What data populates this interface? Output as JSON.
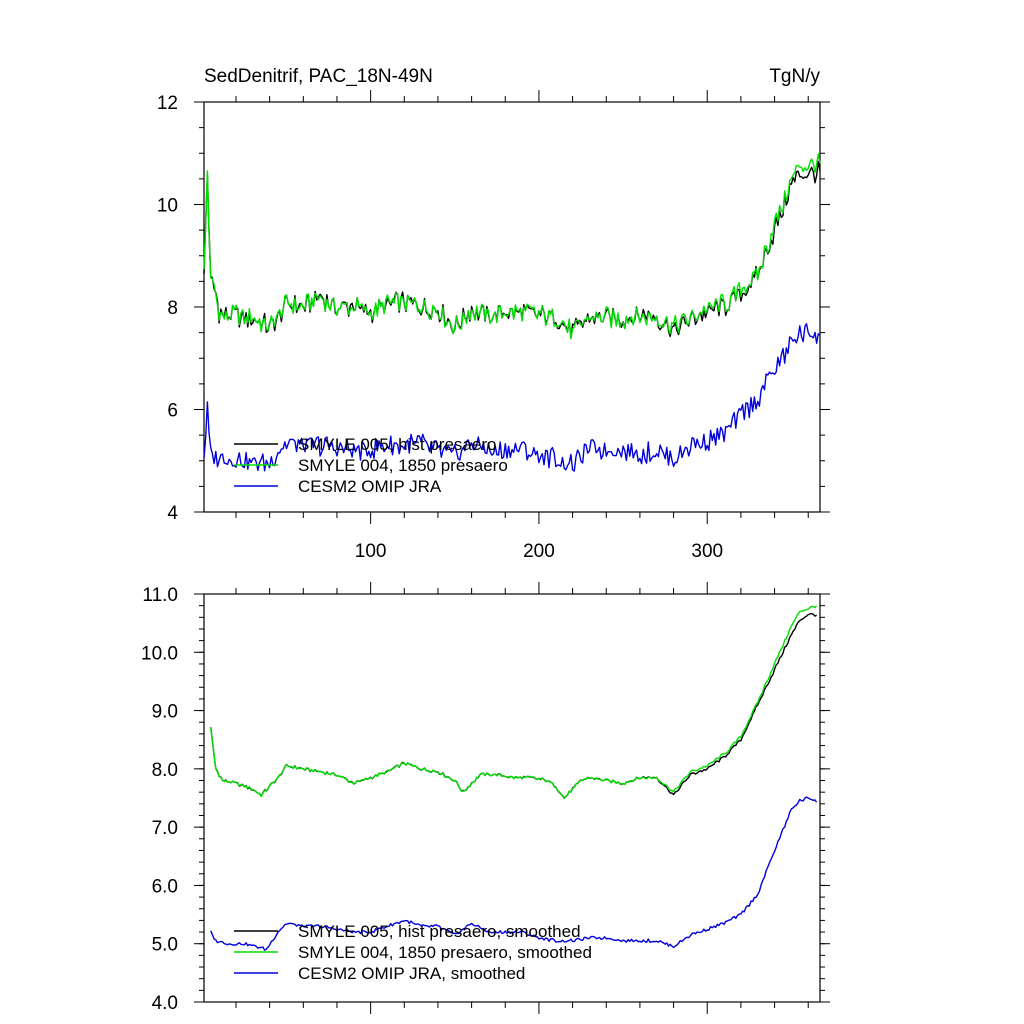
{
  "chart_data": [
    {
      "type": "line",
      "title": "SedDenitrif, PAC_18N-49N",
      "units": "TgN/y",
      "xlim": [
        1,
        367
      ],
      "ylim": [
        4,
        12
      ],
      "x_ticks": [
        100,
        200,
        300
      ],
      "y_ticks": [
        4,
        6,
        8,
        10,
        12
      ],
      "y_tick_labels": [
        "4",
        "6",
        "8",
        "10",
        "12"
      ],
      "grid": false,
      "legend_position": "bottom-left",
      "noise": 0.18,
      "series": [
        {
          "name": "SMYLE 005, hist presaero",
          "color": "#000000",
          "x": [
            1,
            3,
            5,
            7,
            10,
            15,
            20,
            25,
            30,
            40,
            50,
            60,
            70,
            80,
            90,
            100,
            110,
            120,
            130,
            140,
            150,
            160,
            170,
            180,
            190,
            200,
            210,
            220,
            230,
            240,
            250,
            260,
            270,
            280,
            290,
            300,
            310,
            320,
            330,
            340,
            345,
            350,
            355,
            360,
            365,
            367
          ],
          "values": [
            8.6,
            10.6,
            8.5,
            8.4,
            7.9,
            7.8,
            7.85,
            7.75,
            7.8,
            7.6,
            8.05,
            8.0,
            8.2,
            8.0,
            8.0,
            7.9,
            8.05,
            8.1,
            8.0,
            7.95,
            7.6,
            7.95,
            7.8,
            7.9,
            7.9,
            7.85,
            7.8,
            7.5,
            7.8,
            7.8,
            7.75,
            7.85,
            7.8,
            7.55,
            7.75,
            7.9,
            8.0,
            8.25,
            8.6,
            9.5,
            9.9,
            10.4,
            10.6,
            10.6,
            10.65,
            10.6
          ]
        },
        {
          "name": "SMYLE 004, 1850 presaero",
          "color": "#00e000",
          "x": [
            1,
            3,
            5,
            7,
            10,
            15,
            20,
            25,
            30,
            40,
            50,
            60,
            70,
            80,
            90,
            100,
            110,
            120,
            130,
            140,
            150,
            160,
            170,
            180,
            190,
            200,
            210,
            220,
            230,
            240,
            250,
            260,
            270,
            280,
            290,
            300,
            310,
            320,
            330,
            340,
            345,
            350,
            355,
            360,
            365,
            367
          ],
          "values": [
            8.6,
            10.7,
            8.5,
            8.4,
            7.9,
            7.8,
            7.85,
            7.75,
            7.8,
            7.6,
            8.05,
            8.0,
            8.2,
            8.0,
            8.0,
            7.9,
            8.05,
            8.1,
            8.0,
            7.95,
            7.6,
            7.95,
            7.8,
            7.9,
            7.9,
            7.85,
            7.8,
            7.5,
            7.8,
            7.8,
            7.75,
            7.85,
            7.8,
            7.6,
            7.8,
            7.95,
            8.05,
            8.3,
            8.65,
            9.6,
            10.0,
            10.5,
            10.75,
            10.75,
            10.8,
            10.75
          ]
        },
        {
          "name": "CESM2 OMIP JRA",
          "color": "#0000dd",
          "x": [
            1,
            3,
            5,
            10,
            20,
            30,
            40,
            50,
            60,
            70,
            80,
            90,
            100,
            110,
            120,
            130,
            140,
            150,
            160,
            170,
            180,
            190,
            200,
            210,
            220,
            230,
            240,
            250,
            260,
            270,
            280,
            290,
            300,
            310,
            320,
            330,
            340,
            345,
            350,
            355,
            360,
            365,
            367
          ],
          "values": [
            5.1,
            6.0,
            5.1,
            5.05,
            5.05,
            4.95,
            4.95,
            5.35,
            5.3,
            5.3,
            5.25,
            5.2,
            5.2,
            5.3,
            5.3,
            5.35,
            5.2,
            5.1,
            5.35,
            5.2,
            5.2,
            5.25,
            5.1,
            5.05,
            4.9,
            5.25,
            5.2,
            5.2,
            5.1,
            5.2,
            5.0,
            5.3,
            5.4,
            5.5,
            5.9,
            6.2,
            6.8,
            7.0,
            7.3,
            7.45,
            7.5,
            7.45,
            7.45
          ]
        }
      ]
    },
    {
      "type": "line",
      "xlim": [
        1,
        367
      ],
      "ylim": [
        4.0,
        11.0
      ],
      "x_ticks": [
        100,
        200,
        300
      ],
      "y_ticks": [
        4,
        5,
        6,
        7,
        8,
        9,
        10,
        11
      ],
      "y_tick_labels": [
        "4.0",
        "5.0",
        "6.0",
        "7.0",
        "8.0",
        "9.0",
        "10.0",
        "11.0"
      ],
      "grid": false,
      "legend_position": "bottom-left",
      "noise": 0.025,
      "series": [
        {
          "name": "SMYLE 005, hist presaero, smoothed",
          "color": "#000000",
          "x": [
            5,
            8,
            12,
            20,
            30,
            35,
            45,
            50,
            60,
            70,
            80,
            90,
            100,
            110,
            120,
            130,
            140,
            150,
            155,
            165,
            175,
            185,
            195,
            205,
            210,
            215,
            225,
            230,
            240,
            250,
            260,
            270,
            280,
            290,
            300,
            310,
            320,
            330,
            340,
            350,
            355,
            360,
            365
          ],
          "values": [
            8.7,
            8.0,
            7.8,
            7.75,
            7.65,
            7.55,
            7.85,
            8.05,
            8.0,
            7.95,
            7.9,
            7.75,
            7.85,
            7.95,
            8.1,
            8.0,
            7.95,
            7.8,
            7.6,
            7.9,
            7.9,
            7.85,
            7.85,
            7.8,
            7.7,
            7.5,
            7.8,
            7.85,
            7.8,
            7.75,
            7.85,
            7.85,
            7.55,
            7.9,
            8.0,
            8.2,
            8.5,
            9.1,
            9.7,
            10.3,
            10.55,
            10.65,
            10.65
          ]
        },
        {
          "name": "SMYLE 004, 1850 presaero, smoothed",
          "color": "#00e000",
          "x": [
            5,
            8,
            12,
            20,
            30,
            35,
            45,
            50,
            60,
            70,
            80,
            90,
            100,
            110,
            120,
            130,
            140,
            150,
            155,
            165,
            175,
            185,
            195,
            205,
            210,
            215,
            225,
            230,
            240,
            250,
            260,
            270,
            280,
            290,
            300,
            310,
            320,
            330,
            340,
            350,
            355,
            360,
            365
          ],
          "values": [
            8.7,
            8.0,
            7.8,
            7.75,
            7.65,
            7.55,
            7.85,
            8.05,
            8.0,
            7.95,
            7.9,
            7.75,
            7.85,
            7.95,
            8.1,
            8.0,
            7.95,
            7.8,
            7.6,
            7.9,
            7.9,
            7.85,
            7.85,
            7.8,
            7.7,
            7.5,
            7.8,
            7.85,
            7.8,
            7.75,
            7.85,
            7.85,
            7.6,
            7.95,
            8.05,
            8.25,
            8.55,
            9.15,
            9.8,
            10.45,
            10.7,
            10.75,
            10.8
          ]
        },
        {
          "name": "CESM2 OMIP JRA, smoothed",
          "color": "#0000dd",
          "x": [
            5,
            8,
            15,
            25,
            32,
            38,
            45,
            50,
            60,
            70,
            80,
            90,
            100,
            110,
            120,
            130,
            140,
            150,
            160,
            170,
            180,
            190,
            200,
            210,
            220,
            230,
            240,
            250,
            260,
            270,
            280,
            290,
            300,
            310,
            320,
            330,
            340,
            350,
            355,
            360,
            365
          ],
          "values": [
            5.2,
            5.05,
            5.0,
            5.0,
            4.95,
            4.9,
            5.2,
            5.35,
            5.3,
            5.3,
            5.25,
            5.2,
            5.2,
            5.3,
            5.4,
            5.3,
            5.3,
            5.15,
            5.35,
            5.2,
            5.2,
            5.2,
            5.1,
            5.05,
            5.05,
            5.1,
            5.1,
            5.05,
            5.05,
            5.05,
            4.95,
            5.15,
            5.25,
            5.35,
            5.5,
            5.85,
            6.6,
            7.3,
            7.45,
            7.5,
            7.45
          ]
        }
      ]
    }
  ]
}
